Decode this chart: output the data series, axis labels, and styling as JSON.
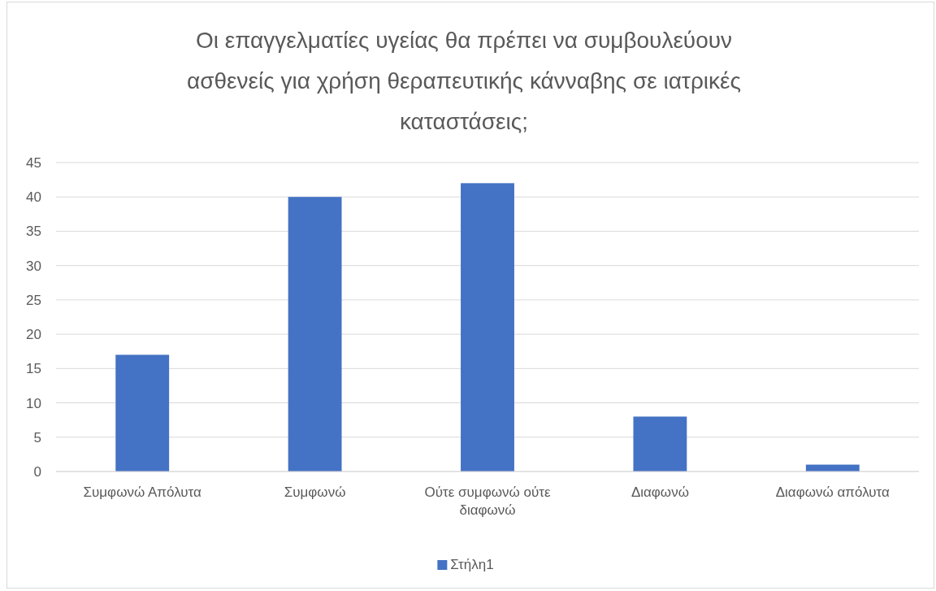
{
  "chart_data": {
    "type": "bar",
    "title": "Οι επαγγελματίες υγείας θα πρέπει να συμβουλεύουν ασθενείς για χρήση θεραπευτικής κάνναβης σε ιατρικές καταστάσεις;",
    "categories": [
      "Συμφωνώ Απόλυτα",
      "Συμφωνώ",
      "Ούτε συμφωνώ ούτε διαφωνώ",
      "Διαφωνώ",
      "Διαφωνώ απόλυτα"
    ],
    "series": [
      {
        "name": "Στήλη1",
        "color": "#4472c4",
        "values": [
          17,
          40,
          42,
          8,
          1
        ]
      }
    ],
    "ylim": [
      0,
      45
    ],
    "yticks": [
      0,
      5,
      10,
      15,
      20,
      25,
      30,
      35,
      40,
      45
    ],
    "grid": "y",
    "legend": "bottom"
  }
}
